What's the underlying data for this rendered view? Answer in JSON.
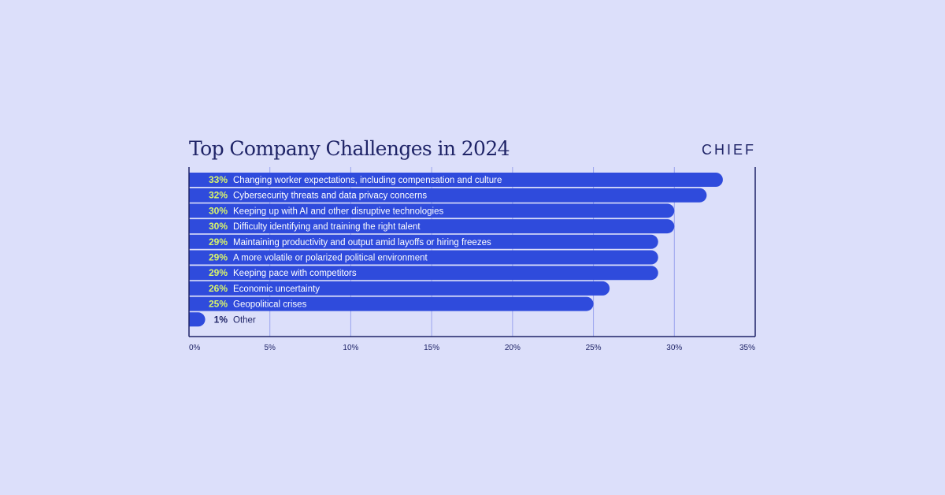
{
  "header": {
    "title": "Top Company Challenges in 2024",
    "brand": "CHIEF"
  },
  "colors": {
    "background": "#dcdffa",
    "bar": "#2f4bdc",
    "axis": "#1f2467",
    "grid": "#9aa3ee",
    "pct_highlight": "#d8f56b",
    "label_on_bar": "#ffffff",
    "label_off_bar": "#1f2467"
  },
  "chart_data": {
    "type": "bar",
    "orientation": "horizontal",
    "title": "Top Company Challenges in 2024",
    "xlabel": "",
    "ylabel": "",
    "xlim": [
      0,
      35
    ],
    "grid": true,
    "legend": "none",
    "categories": [
      "Changing worker expectations, including compensation and culture",
      "Cybersecurity threats and data privacy concerns",
      "Keeping up with AI and other disruptive technologies",
      "Difficulty identifying and training the right talent",
      "Maintaining productivity and output amid layoffs or hiring freezes",
      "A more volatile or polarized political environment",
      "Keeping pace with competitors",
      "Economic uncertainty",
      "Geopolitical crises",
      "Other"
    ],
    "values": [
      33,
      32,
      30,
      30,
      29,
      29,
      29,
      26,
      25,
      1
    ],
    "value_labels": [
      "33%",
      "32%",
      "30%",
      "30%",
      "29%",
      "29%",
      "29%",
      "26%",
      "25%",
      "1%"
    ],
    "x_ticks": [
      "0%",
      "5%",
      "10%",
      "15%",
      "20%",
      "25%",
      "30%",
      "35%"
    ]
  }
}
